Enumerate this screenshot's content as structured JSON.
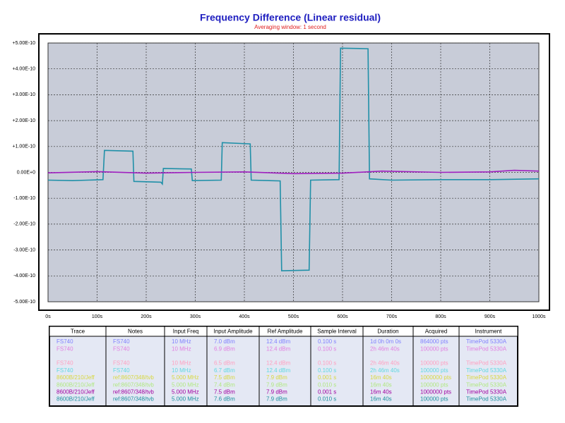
{
  "chart_data": {
    "type": "line",
    "title": "Frequency Difference (Linear residual)",
    "subtitle": "Averaging window: 1 second",
    "xlim": [
      0,
      1000
    ],
    "xticks": [
      {
        "value": 0,
        "label": "0s"
      },
      {
        "value": 100,
        "label": "100s"
      },
      {
        "value": 200,
        "label": "200s"
      },
      {
        "value": 300,
        "label": "300s"
      },
      {
        "value": 400,
        "label": "400s"
      },
      {
        "value": 500,
        "label": "500s"
      },
      {
        "value": 600,
        "label": "600s"
      },
      {
        "value": 700,
        "label": "700s"
      },
      {
        "value": 800,
        "label": "800s"
      },
      {
        "value": 900,
        "label": "900s"
      },
      {
        "value": 1000,
        "label": "1000s"
      }
    ],
    "ylim": [
      -5e-10,
      5e-10
    ],
    "yticks": [
      {
        "value": 5e-10,
        "label": "+5.00E-10"
      },
      {
        "value": 4e-10,
        "label": "+4.00E-10"
      },
      {
        "value": 3e-10,
        "label": "+3.00E-10"
      },
      {
        "value": 2e-10,
        "label": "+2.00E-10"
      },
      {
        "value": 1e-10,
        "label": "+1.00E-10"
      },
      {
        "value": 0,
        "label": "0.00E+0"
      },
      {
        "value": -1e-10,
        "label": "-1.00E-10"
      },
      {
        "value": -2e-10,
        "label": "-2.00E-10"
      },
      {
        "value": -3e-10,
        "label": "-3.00E-10"
      },
      {
        "value": -4e-10,
        "label": "-4.00E-10"
      },
      {
        "value": -5e-10,
        "label": "-5.00E-10"
      }
    ],
    "grid": true,
    "series": [
      {
        "color": "#2090a8",
        "x": [
          0,
          50,
          112,
          115,
          173,
          175,
          230,
          233,
          235,
          292,
          294,
          353,
          355,
          412,
          414,
          473,
          476,
          532,
          535,
          593,
          596,
          652,
          655,
          700,
          800,
          900,
          1000
        ],
        "values": [
          -3e-11,
          -3.2e-11,
          -2.8e-11,
          8.5e-11,
          8.2e-11,
          -3.5e-11,
          -3.8e-11,
          -4.5e-11,
          1.5e-11,
          1.3e-11,
          -3.2e-11,
          -3e-11,
          1.15e-10,
          1.1e-10,
          -3e-11,
          -3.3e-11,
          -3.8e-10,
          -3.78e-10,
          -3e-11,
          -2.8e-11,
          4.8e-10,
          4.78e-10,
          -2.5e-11,
          -3e-11,
          -2.8e-11,
          -2.8e-11,
          -2.5e-11
        ]
      },
      {
        "color": "#a020c0",
        "x": [
          0,
          100,
          200,
          300,
          400,
          500,
          600,
          680,
          800,
          900,
          950,
          1000
        ],
        "values": [
          -2e-12,
          3e-12,
          -3e-12,
          0,
          2e-12,
          -5e-12,
          -3e-12,
          5e-12,
          0,
          2e-12,
          8e-12,
          5e-12
        ]
      }
    ]
  },
  "table": {
    "header": [
      "Trace",
      "Notes",
      "Input Freq",
      "Input Amplitude",
      "Ref Amplitude",
      "Sample Interval",
      "Duration",
      "Acquired",
      "Instrument"
    ],
    "rows": [
      {
        "color": "#8080ff",
        "cells": [
          "FS740",
          "FS740",
          "10 MHz",
          "7.0 dBm",
          "12.4 dBm",
          "0.100 s",
          "1d 0h 0m 0s",
          "864000 pts",
          "TimePod 5330A"
        ]
      },
      {
        "color": "#e080e0",
        "cells": [
          "FS740",
          "FS740",
          "10 MHz",
          "6.9 dBm",
          "12.4 dBm",
          "0.100 s",
          "2h 46m 40s",
          "100000 pts",
          "TimePod 5330A"
        ]
      },
      {
        "color": "#ffa0c0",
        "cells": [
          "FS740",
          "FS740",
          "10 MHz",
          "6.5 dBm",
          "12.4 dBm",
          "0.100 s",
          "2h 46m 40s",
          "100000 pts",
          "TimePod 5330A"
        ]
      },
      {
        "color": "#60d8e0",
        "cells": [
          "FS740",
          "FS740",
          "10 MHz",
          "6.7 dBm",
          "12.4 dBm",
          "0.100 s",
          "2h 46m 40s",
          "100000 pts",
          "TimePod 5330A"
        ]
      },
      {
        "color": "#d8d840",
        "cells": [
          "8600B/210/Jeff",
          "ref:8607/348/tvb",
          "5.000 MHz",
          "7.5 dBm",
          "7.9 dBm",
          "0.001 s",
          "16m 40s",
          "1000000 pts",
          "TimePod 5330A"
        ]
      },
      {
        "color": "#b0e880",
        "cells": [
          "8600B/210/Jeff",
          "ref:8607/348/tvb",
          "5.000 MHz",
          "7.4 dBm",
          "7.9 dBm",
          "0.010 s",
          "16m 40s",
          "100000 pts",
          "TimePod 5330A"
        ]
      },
      {
        "color": "#a000a0",
        "cells": [
          "8600B/210/Jeff",
          "ref:8607/348/tvb",
          "5.000 MHz",
          "7.5 dBm",
          "7.9 dBm",
          "0.001 s",
          "16m 40s",
          "1000000 pts",
          "TimePod 5330A"
        ]
      },
      {
        "color": "#2090a0",
        "cells": [
          "8600B/210/Jeff",
          "ref:8607/348/tvb",
          "5.000 MHz",
          "7.6 dBm",
          "7.9 dBm",
          "0.010 s",
          "16m 40s",
          "100000 pts",
          "TimePod 5330A"
        ]
      }
    ]
  }
}
